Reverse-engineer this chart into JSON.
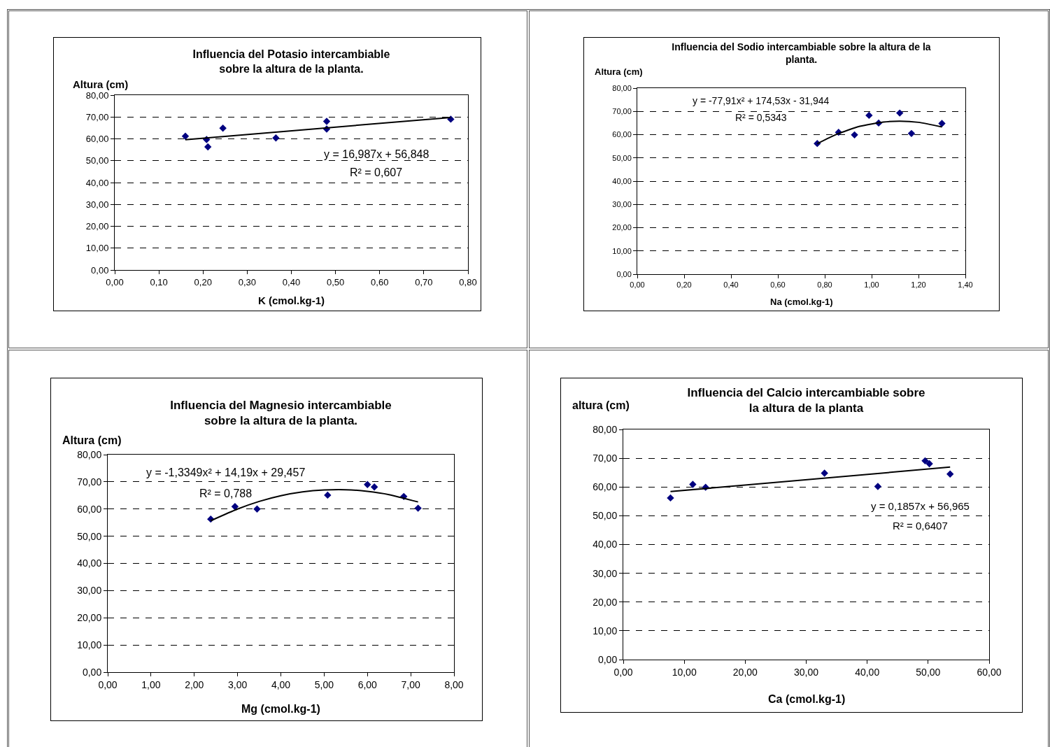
{
  "chart_data": [
    {
      "type": "scatter",
      "title": "Influencia del Potasio intercambiable\nsobre la altura de la planta.",
      "xlabel": "K (cmol.kg-1)",
      "ylabel": "Altura (cm)",
      "annotations": [
        "y = 16,987x + 56,848",
        "R² = 0,607"
      ],
      "series": [
        {
          "color": "#000080",
          "marker": "diamond",
          "x": [
            0.16,
            0.208,
            0.211,
            0.245,
            0.365,
            0.48,
            0.48,
            0.761
          ],
          "values": [
            61.2,
            59.7,
            56.3,
            64.9,
            60.4,
            68.0,
            64.5,
            69.0
          ]
        },
        {
          "type": "line",
          "color": "#000000",
          "marker": "none",
          "x": [
            0.16,
            0.761
          ],
          "values": [
            59.6,
            69.8
          ]
        }
      ],
      "xlim": [
        0,
        0.8
      ],
      "xticks": [
        {
          "value": 0,
          "label": "0,00"
        },
        {
          "value": 0.1,
          "label": "0,10"
        },
        {
          "value": 0.2,
          "label": "0,20"
        },
        {
          "value": 0.3,
          "label": "0,30"
        },
        {
          "value": 0.4,
          "label": "0,40"
        },
        {
          "value": 0.5,
          "label": "0,50"
        },
        {
          "value": 0.6,
          "label": "0,60"
        },
        {
          "value": 0.7,
          "label": "0,70"
        },
        {
          "value": 0.8,
          "label": "0,80"
        }
      ],
      "ylim": [
        0,
        80
      ],
      "yticks": [
        {
          "value": 0,
          "label": "0,00"
        },
        {
          "value": 10,
          "label": "10,00"
        },
        {
          "value": 20,
          "label": "20,00"
        },
        {
          "value": 30,
          "label": "30,00"
        },
        {
          "value": 40,
          "label": "40,00"
        },
        {
          "value": 50,
          "label": "50,00"
        },
        {
          "value": 60,
          "label": "60,00"
        },
        {
          "value": 70,
          "label": "70,00"
        },
        {
          "value": 80,
          "label": "80,00"
        }
      ],
      "grid": "y"
    },
    {
      "type": "scatter",
      "title": "Influencia del Sodio intercambiable sobre la altura de la\nplanta.",
      "xlabel": "Na (cmol.kg-1)",
      "ylabel": "Altura (cm)",
      "annotations": [
        "y = -77,91x² + 174,53x - 31,944",
        "R² = 0,5343"
      ],
      "series": [
        {
          "color": "#000080",
          "marker": "diamond",
          "x": [
            0.768,
            0.859,
            0.927,
            0.989,
            1.03,
            1.12,
            1.17,
            1.3
          ],
          "values": [
            56.2,
            61.0,
            59.9,
            68.3,
            65.0,
            69.3,
            60.5,
            64.8
          ]
        },
        {
          "type": "line",
          "color": "#000000",
          "marker": "none",
          "x": [
            0.768,
            0.85,
            0.95,
            1.05,
            1.12,
            1.2,
            1.3
          ],
          "values": [
            56.1,
            60.1,
            63.6,
            65.4,
            65.8,
            65.3,
            63.3
          ]
        }
      ],
      "xlim": [
        0,
        1.4
      ],
      "xticks": [
        {
          "value": 0,
          "label": "0,00"
        },
        {
          "value": 0.2,
          "label": "0,20"
        },
        {
          "value": 0.4,
          "label": "0,40"
        },
        {
          "value": 0.6,
          "label": "0,60"
        },
        {
          "value": 0.8,
          "label": "0,80"
        },
        {
          "value": 1,
          "label": "1,00"
        },
        {
          "value": 1.2,
          "label": "1,20"
        },
        {
          "value": 1.4,
          "label": "1,40"
        }
      ],
      "ylim": [
        0,
        80
      ],
      "yticks": [
        {
          "value": 0,
          "label": "0,00"
        },
        {
          "value": 10,
          "label": "10,00"
        },
        {
          "value": 20,
          "label": "20,00"
        },
        {
          "value": 30,
          "label": "30,00"
        },
        {
          "value": 40,
          "label": "40,00"
        },
        {
          "value": 50,
          "label": "50,00"
        },
        {
          "value": 60,
          "label": "60,00"
        },
        {
          "value": 70,
          "label": "70,00"
        },
        {
          "value": 80,
          "label": "80,00"
        }
      ],
      "grid": "y"
    },
    {
      "type": "scatter",
      "title": "Influencia del Magnesio intercambiable\nsobre la altura de la planta.",
      "xlabel": "Mg (cmol.kg-1)",
      "ylabel": "Altura (cm)",
      "annotations": [
        "y = -1,3349x² + 14,19x + 29,457",
        "R² = 0,788"
      ],
      "series": [
        {
          "color": "#000080",
          "marker": "diamond",
          "x": [
            2.38,
            2.94,
            3.45,
            5.08,
            6.0,
            6.16,
            6.84,
            7.17
          ],
          "values": [
            56.3,
            60.9,
            60.0,
            65.1,
            69.0,
            68.1,
            64.6,
            60.3
          ]
        },
        {
          "type": "line",
          "color": "#000000",
          "marker": "none",
          "x": [
            2.38,
            3,
            3.5,
            4,
            4.5,
            5,
            5.5,
            6,
            6.5,
            7.17
          ],
          "values": [
            55.7,
            60.0,
            62.8,
            64.9,
            66.3,
            67.0,
            67.1,
            66.5,
            65.3,
            62.6
          ]
        }
      ],
      "xlim": [
        0,
        8
      ],
      "xticks": [
        {
          "value": 0,
          "label": "0,00"
        },
        {
          "value": 1,
          "label": "1,00"
        },
        {
          "value": 2,
          "label": "2,00"
        },
        {
          "value": 3,
          "label": "3,00"
        },
        {
          "value": 4,
          "label": "4,00"
        },
        {
          "value": 5,
          "label": "5,00"
        },
        {
          "value": 6,
          "label": "6,00"
        },
        {
          "value": 7,
          "label": "7,00"
        },
        {
          "value": 8,
          "label": "8,00"
        }
      ],
      "ylim": [
        0,
        80
      ],
      "yticks": [
        {
          "value": 0,
          "label": "0,00"
        },
        {
          "value": 10,
          "label": "10,00"
        },
        {
          "value": 20,
          "label": "20,00"
        },
        {
          "value": 30,
          "label": "30,00"
        },
        {
          "value": 40,
          "label": "40,00"
        },
        {
          "value": 50,
          "label": "50,00"
        },
        {
          "value": 60,
          "label": "60,00"
        },
        {
          "value": 70,
          "label": "70,00"
        },
        {
          "value": 80,
          "label": "80,00"
        }
      ],
      "grid": "y"
    },
    {
      "type": "scatter",
      "title": "Influencia del Calcio intercambiable sobre\nla altura de la planta",
      "xlabel": "Ca (cmol.kg-1)",
      "ylabel": "altura (cm)",
      "annotations": [
        "y = 0,1857x + 56,965",
        "R² = 0,6407"
      ],
      "series": [
        {
          "color": "#000080",
          "marker": "diamond",
          "x": [
            7.74,
            11.4,
            13.5,
            33.0,
            41.75,
            49.5,
            50.2,
            53.6
          ],
          "values": [
            56.2,
            60.9,
            59.9,
            64.8,
            60.2,
            69.1,
            68.1,
            64.5
          ]
        },
        {
          "type": "line",
          "color": "#000000",
          "marker": "none",
          "x": [
            7.74,
            53.6
          ],
          "values": [
            58.4,
            66.9
          ]
        }
      ],
      "xlim": [
        0,
        60
      ],
      "xticks": [
        {
          "value": 0,
          "label": "0,00"
        },
        {
          "value": 10,
          "label": "10,00"
        },
        {
          "value": 20,
          "label": "20,00"
        },
        {
          "value": 30,
          "label": "30,00"
        },
        {
          "value": 40,
          "label": "40,00"
        },
        {
          "value": 50,
          "label": "50,00"
        },
        {
          "value": 60,
          "label": "60,00"
        }
      ],
      "ylim": [
        0,
        80
      ],
      "yticks": [
        {
          "value": 0,
          "label": "0,00"
        },
        {
          "value": 10,
          "label": "10,00"
        },
        {
          "value": 20,
          "label": "20,00"
        },
        {
          "value": 30,
          "label": "30,00"
        },
        {
          "value": 40,
          "label": "40,00"
        },
        {
          "value": 50,
          "label": "50,00"
        },
        {
          "value": 60,
          "label": "60,00"
        },
        {
          "value": 70,
          "label": "70,00"
        },
        {
          "value": 80,
          "label": "80,00"
        }
      ],
      "grid": "y"
    }
  ]
}
